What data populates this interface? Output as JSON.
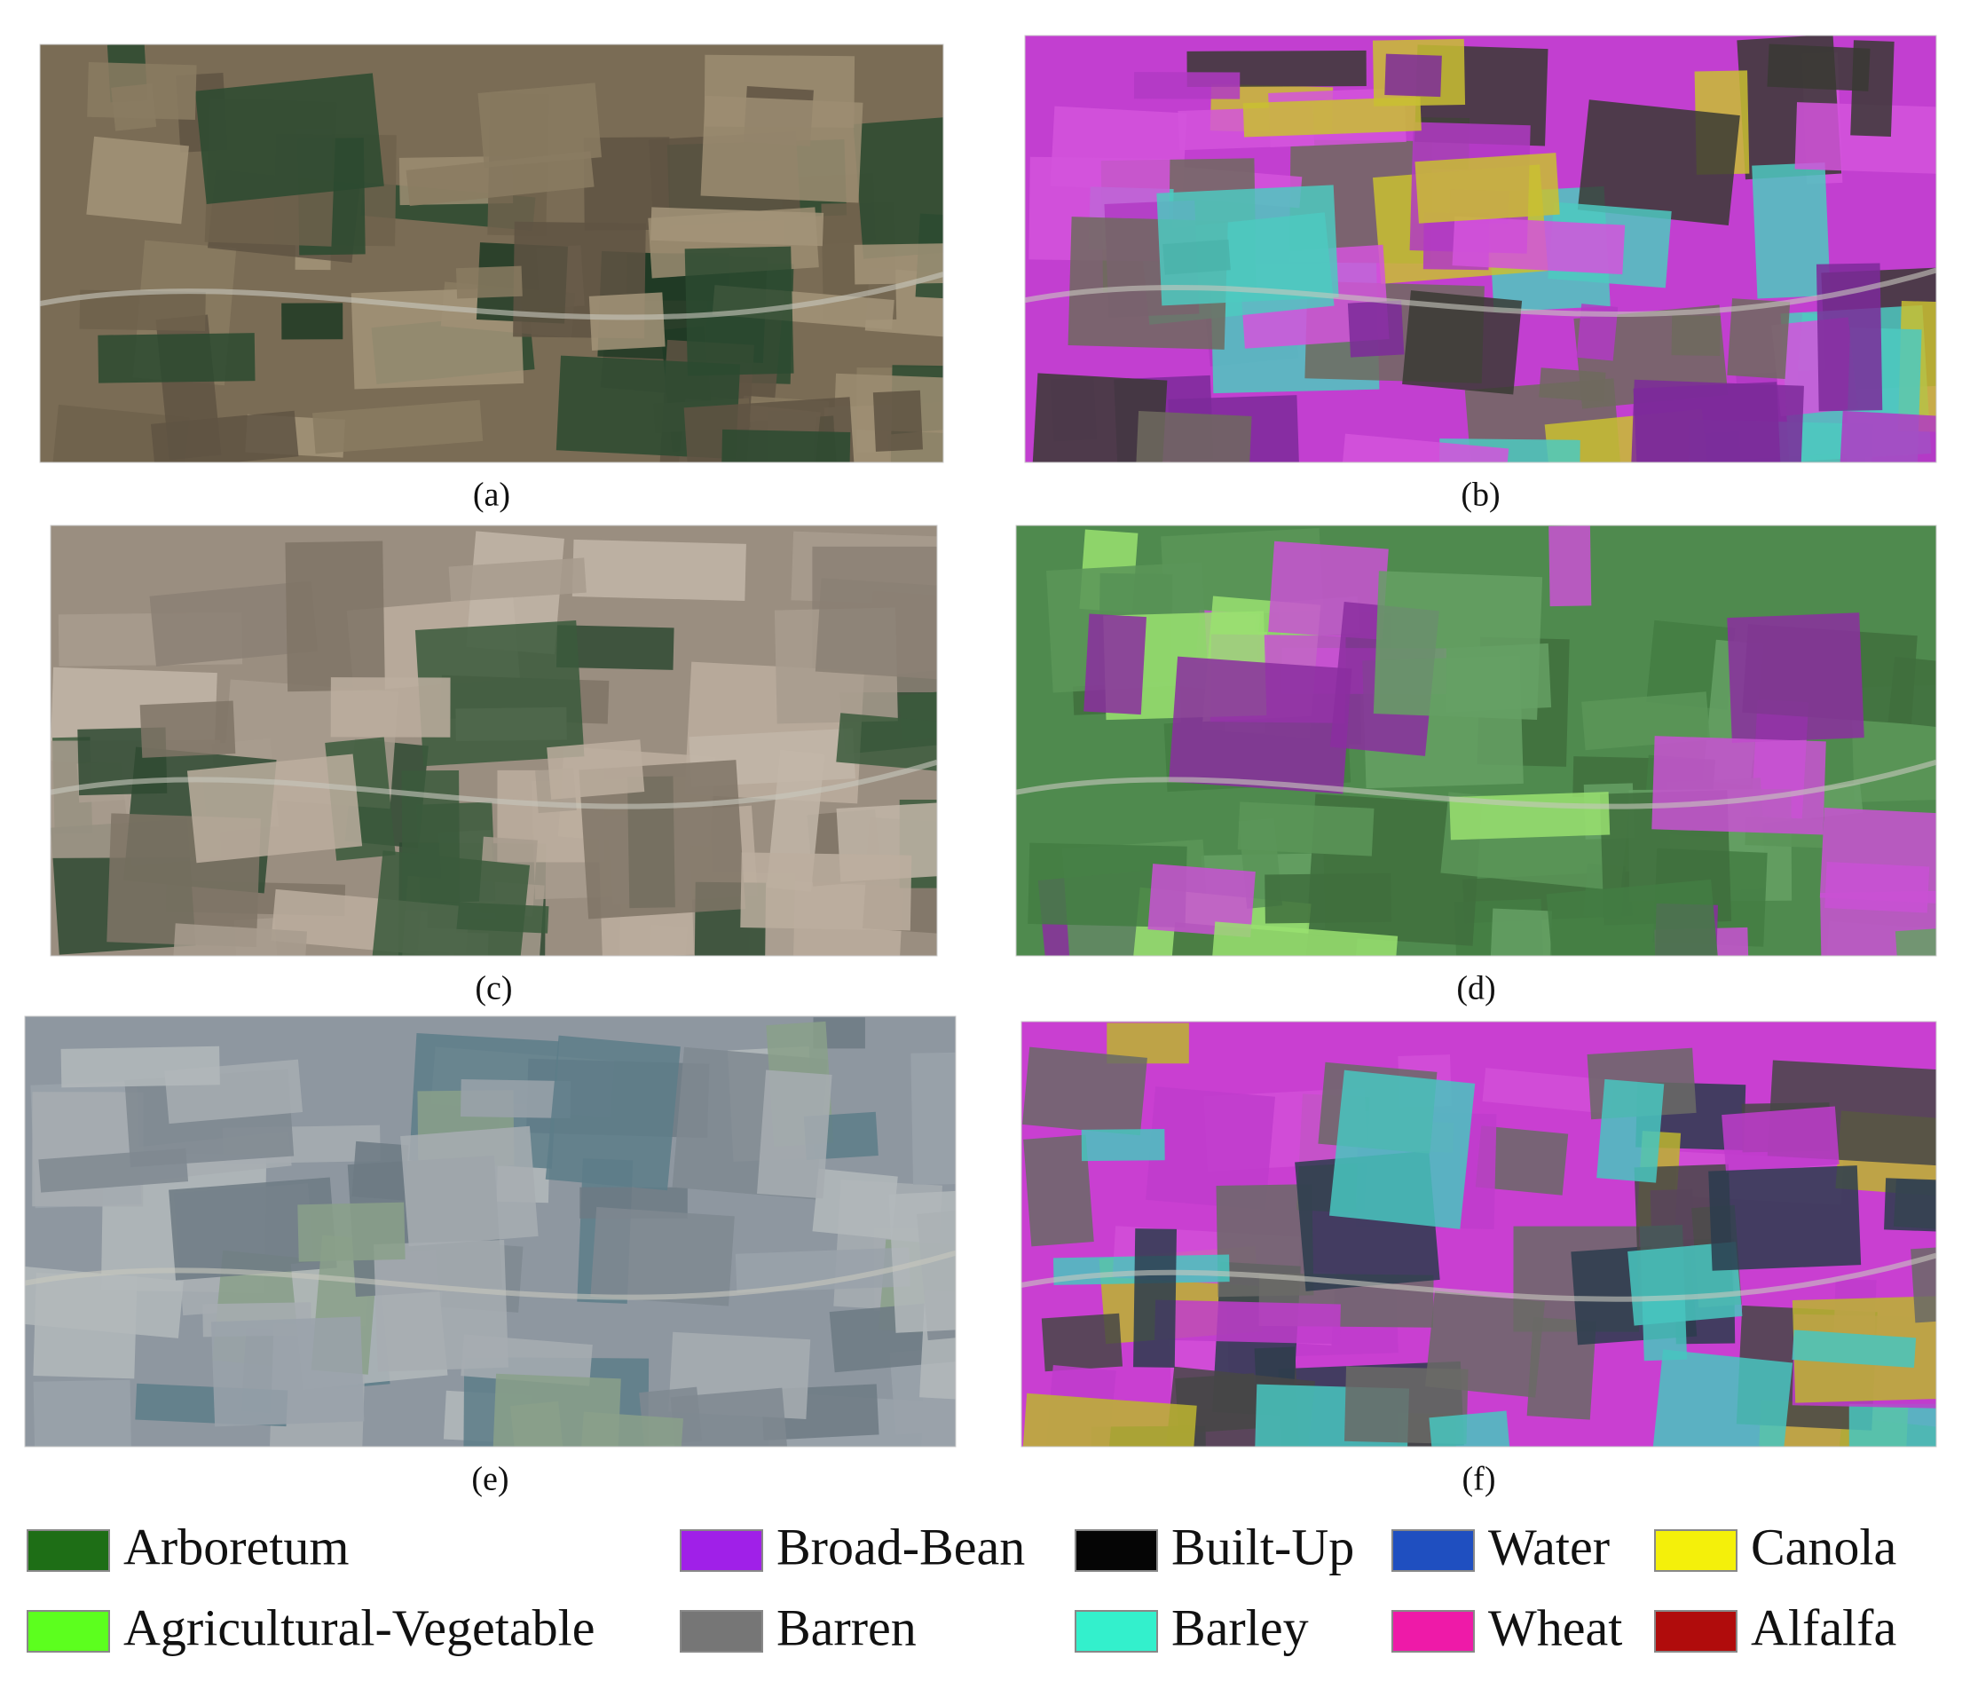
{
  "panels": [
    {
      "caption": "(a)"
    },
    {
      "caption": "(b)"
    },
    {
      "caption": "(c)"
    },
    {
      "caption": "(d)"
    },
    {
      "caption": "(e)"
    },
    {
      "caption": "(f)"
    }
  ],
  "legend": {
    "items": [
      {
        "label": "Arboretum",
        "color": "#1e6e16"
      },
      {
        "label": "Broad-Bean",
        "color": "#a020e8"
      },
      {
        "label": "Built-Up",
        "color": "#050505"
      },
      {
        "label": "Water",
        "color": "#1f4fc0"
      },
      {
        "label": "Canola",
        "color": "#f4f00a"
      },
      {
        "label": "Agricultural-Vegetable",
        "color": "#5cff1e"
      },
      {
        "label": "Barren",
        "color": "#767676"
      },
      {
        "label": "Barley",
        "color": "#33f0cc"
      },
      {
        "label": "Wheat",
        "color": "#ee1aa8"
      },
      {
        "label": "Alfalfa",
        "color": "#b00c0c"
      }
    ]
  }
}
